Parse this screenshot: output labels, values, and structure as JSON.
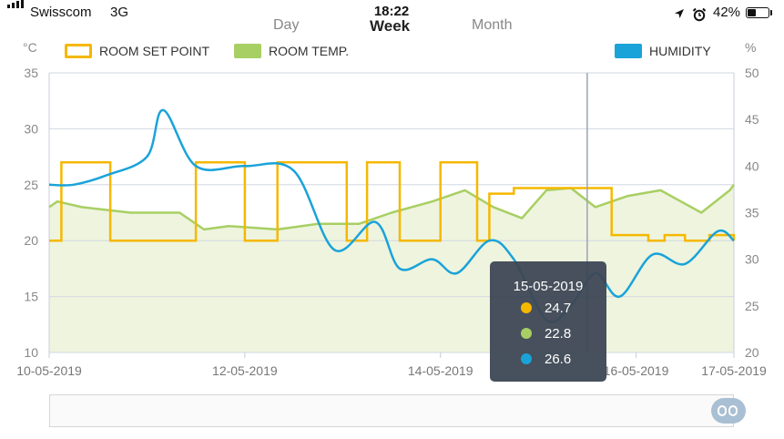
{
  "status_bar": {
    "carrier": "Swisscom",
    "network": "3G",
    "time": "18:22",
    "battery": "42%",
    "battery_level": 0.42,
    "icons": [
      "signal-icon",
      "location-arrow-icon",
      "alarm-icon",
      "battery-icon"
    ]
  },
  "tabs": [
    {
      "label": "Day",
      "active": false
    },
    {
      "label": "Week",
      "active": true
    },
    {
      "label": "Month",
      "active": false
    }
  ],
  "chart_data": {
    "type": "line",
    "left_axis": {
      "unit": "°C",
      "ylim": [
        10,
        35
      ],
      "ticks": [
        10,
        15,
        20,
        25,
        30,
        35
      ]
    },
    "right_axis": {
      "unit": "%",
      "ylim": [
        20,
        50
      ],
      "ticks": [
        20,
        25,
        30,
        35,
        40,
        45,
        50
      ]
    },
    "x_range": [
      "10-05-2019",
      "17-05-2019"
    ],
    "x_ticks": [
      "10-05-2019",
      "12-05-2019",
      "14-05-2019",
      "16-05-2019",
      "17-05-2019"
    ],
    "grid": true,
    "legend": [
      {
        "name": "ROOM SET POINT",
        "color": "#f5b800"
      },
      {
        "name": "ROOM TEMP.",
        "color": "#a8cf63"
      },
      {
        "name": "HUMIDITY",
        "color": "#1aa3d9"
      }
    ],
    "series": [
      {
        "name": "ROOM SET POINT",
        "axis": "left",
        "color": "#f5b800",
        "step": true,
        "x": [
          "10-05-2019 00:00",
          "10-05-2019 03:00",
          "10-05-2019 15:00",
          "11-05-2019 12:00",
          "12-05-2019 00:00",
          "12-05-2019 08:00",
          "13-05-2019 01:00",
          "13-05-2019 06:00",
          "13-05-2019 14:00",
          "14-05-2019 00:00",
          "14-05-2019 09:00",
          "14-05-2019 12:00",
          "14-05-2019 18:00",
          "15-05-2019 00:00",
          "15-05-2019 06:00",
          "15-05-2019 18:00",
          "16-05-2019 03:00",
          "16-05-2019 07:00",
          "16-05-2019 12:00",
          "16-05-2019 18:00",
          "16-05-2019 22:00",
          "17-05-2019 00:00"
        ],
        "y": [
          20,
          27,
          20,
          27,
          20,
          27,
          20,
          27,
          20,
          27,
          20,
          24.2,
          24.7,
          24.7,
          24.7,
          20.5,
          20,
          20.5,
          20,
          20.5,
          20.5,
          20
        ]
      },
      {
        "name": "ROOM TEMP.",
        "axis": "left",
        "color": "#a8cf63",
        "fill": "#eef4de",
        "x": [
          "10-05-2019 00:00",
          "10-05-2019 02:00",
          "10-05-2019 08:00",
          "10-05-2019 20:00",
          "11-05-2019 08:00",
          "11-05-2019 14:00",
          "11-05-2019 20:00",
          "12-05-2019 08:00",
          "12-05-2019 18:00",
          "13-05-2019 04:00",
          "13-05-2019 12:00",
          "13-05-2019 22:00",
          "14-05-2019 06:00",
          "14-05-2019 13:00",
          "14-05-2019 20:00",
          "15-05-2019 02:00",
          "15-05-2019 08:00",
          "15-05-2019 14:00",
          "15-05-2019 22:00",
          "16-05-2019 06:00",
          "16-05-2019 11:00",
          "16-05-2019 16:00",
          "16-05-2019 23:00",
          "17-05-2019 00:00"
        ],
        "y": [
          23,
          23.5,
          23,
          22.5,
          22.5,
          21,
          21.3,
          21,
          21.5,
          21.5,
          22.5,
          23.5,
          24.5,
          23,
          22,
          24.5,
          24.7,
          23,
          24,
          24.5,
          23.5,
          22.5,
          24.5,
          25
        ]
      },
      {
        "name": "HUMIDITY",
        "axis": "right",
        "color": "#1aa3d9",
        "x": [
          "10-05-2019 00:00",
          "10-05-2019 06:00",
          "10-05-2019 14:00",
          "11-05-2019 00:00",
          "11-05-2019 04:00",
          "11-05-2019 12:00",
          "12-05-2019 00:00",
          "12-05-2019 12:00",
          "12-05-2019 22:00",
          "13-05-2019 08:00",
          "13-05-2019 14:00",
          "13-05-2019 22:00",
          "14-05-2019 04:00",
          "14-05-2019 12:00",
          "14-05-2019 18:00",
          "15-05-2019 02:00",
          "15-05-2019 08:00",
          "15-05-2019 14:00",
          "15-05-2019 20:00",
          "16-05-2019 04:00",
          "16-05-2019 12:00",
          "16-05-2019 20:00",
          "17-05-2019 00:00"
        ],
        "y": [
          38,
          38,
          39,
          41,
          46,
          40,
          40,
          39.5,
          31,
          34,
          29,
          30,
          28.5,
          32,
          30,
          23.5,
          25,
          28.5,
          26,
          30.5,
          29.5,
          33,
          32
        ]
      }
    ],
    "cursor_date": "15-05-2019",
    "tooltip": {
      "date": "15-05-2019",
      "entries": [
        {
          "name": "ROOM SET POINT",
          "value": "24.7",
          "color": "#f5b800"
        },
        {
          "name": "ROOM TEMP.",
          "value": "22.8",
          "color": "#a8cf63"
        },
        {
          "name": "HUMIDITY",
          "value": "26.6",
          "color": "#1aa3d9"
        }
      ]
    }
  },
  "navigator": {
    "handle_icon": "drag-handle-icon"
  }
}
